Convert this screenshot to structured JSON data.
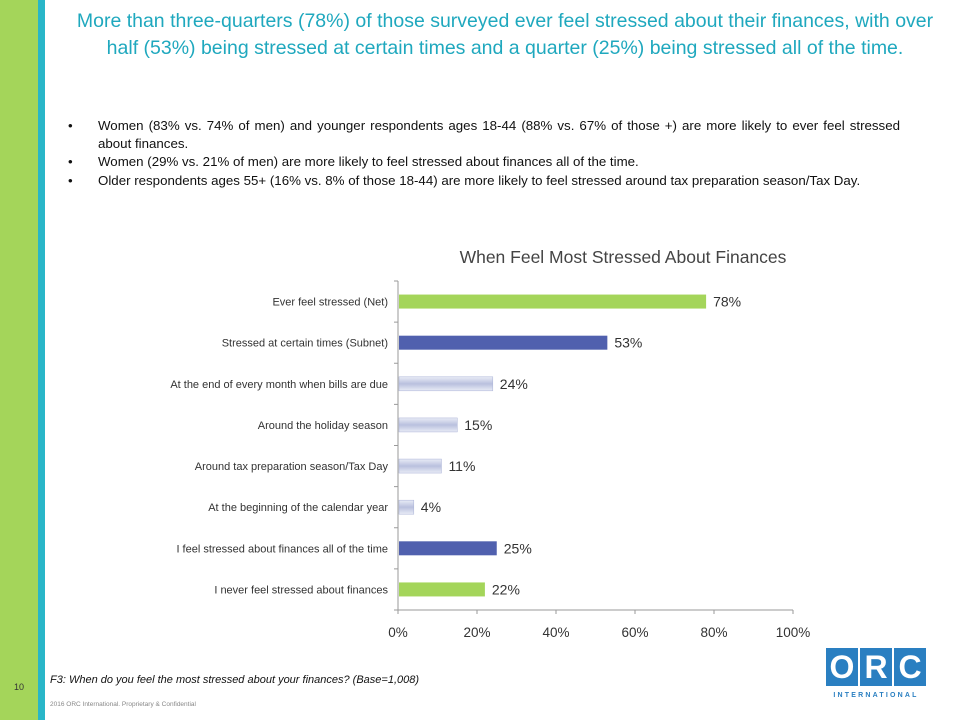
{
  "page_number": "10",
  "title": "More than three-quarters (78%) of those surveyed ever feel stressed about their finances, with over half (53%) being stressed at certain times and a quarter (25%) being stressed all of the time.",
  "bullets": [
    "Women (83% vs. 74% of men) and younger respondents ages 18-44 (88% vs. 67% of those +) are more likely to ever feel stressed about finances.",
    "Women (29% vs. 21% of men) are more likely to feel stressed about finances all of the time.",
    "Older respondents ages 55+ (16% vs. 8% of those 18-44) are more likely to feel stressed around tax preparation season/Tax Day."
  ],
  "footnote": "F3:   When do you feel the most stressed about your finances? (Base=1,008)",
  "copyright": "2016 ORC International. Proprietary & Confidential",
  "logo": {
    "letters": [
      "O",
      "R",
      "C"
    ],
    "subtitle": "INTERNATIONAL",
    "color": "#2a7fc1"
  },
  "colors": {
    "green": "#a4d55a",
    "blue": "#5060ae",
    "light": "#c4cae4",
    "title": "#1fa8be"
  },
  "chart_data": {
    "type": "bar",
    "orientation": "horizontal",
    "title": "When Feel Most Stressed About Finances",
    "categories": [
      "Ever feel stressed (Net)",
      "Stressed at certain times (Subnet)",
      "At the end of every month when bills are due",
      "Around the holiday season",
      "Around tax preparation season/Tax Day",
      "At the beginning of the calendar year",
      "I feel stressed about finances all of the time",
      "I never feel stressed about finances"
    ],
    "values": [
      78,
      53,
      24,
      15,
      11,
      4,
      25,
      22
    ],
    "value_labels": [
      "78%",
      "53%",
      "24%",
      "15%",
      "11%",
      "4%",
      "25%",
      "22%"
    ],
    "bar_styles": [
      "green",
      "blue",
      "light",
      "light",
      "light",
      "light",
      "blue",
      "green"
    ],
    "xlim": [
      0,
      100
    ],
    "xticks": [
      "0%",
      "20%",
      "40%",
      "60%",
      "80%",
      "100%"
    ],
    "grid": false
  }
}
